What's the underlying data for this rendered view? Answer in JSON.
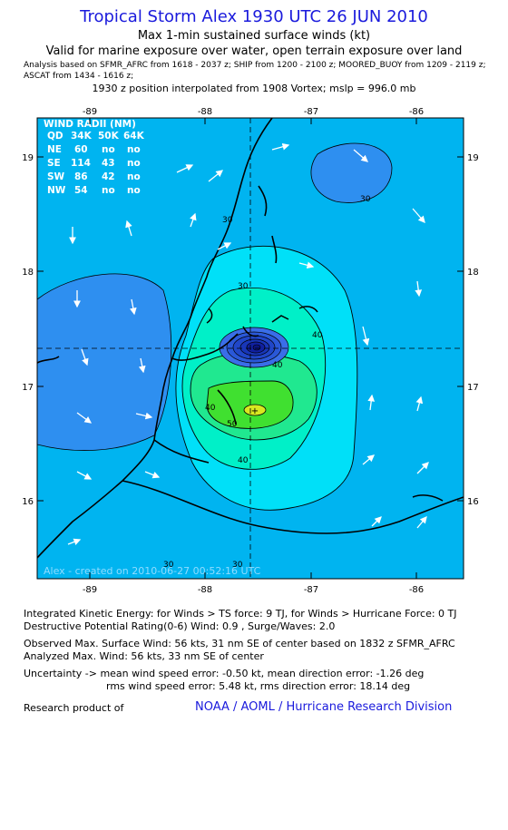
{
  "header": {
    "title": "Tropical Storm Alex 1930 UTC 26 JUN 2010",
    "subtitle_wind": "Max 1-min sustained surface winds (kt)",
    "subtitle_exposure": "Valid for marine exposure over water, open terrain exposure over land",
    "analysis_line1": "Analysis based on  SFMR_AFRC from 1618 - 2037 z;  SHIP from 1200 - 2100 z;  MOORED_BUOY from 1209 - 2119 z;",
    "analysis_line2": "ASCAT from 1434 - 1616 z;",
    "position_line": "1930 z position interpolated from 1908 Vortex; mslp = 996.0 mb"
  },
  "map": {
    "lon_ticks": [
      "-89",
      "-88",
      "-87",
      "-86"
    ],
    "lat_ticks": [
      "19",
      "18",
      "17",
      "16"
    ],
    "created_text": "Alex - created on 2010-06-27 00:52:16 UTC",
    "contour_labels": [
      "30",
      "40",
      "50",
      "40",
      "40",
      "30",
      "40",
      "30",
      "30",
      "30"
    ],
    "colors": {
      "land_line": "#000000",
      "wind_20_30": "#00b4f0",
      "wind_30_40": "#00e0f8",
      "wind_low": "#2e8ff0",
      "wind_40_50": "#00f0c8",
      "wind_50_plus": "#40e030",
      "wind_peak": "#d8e820",
      "core": "#1020a0"
    },
    "wind_radii": {
      "title": "WIND RADII (NM)",
      "header": [
        "QD",
        "34K",
        "50K",
        "64K"
      ],
      "rows": [
        [
          "NE",
          "60",
          "no",
          "no"
        ],
        [
          "SE",
          "114",
          "43",
          "no"
        ],
        [
          "SW",
          "86",
          "42",
          "no"
        ],
        [
          "NW",
          "54",
          "no",
          "no"
        ]
      ]
    }
  },
  "footer": {
    "ike": "Integrated Kinetic Energy:  for Winds > TS force: 9 TJ,  for Winds > Hurricane Force: 0 TJ",
    "dpr": "Destructive Potential Rating(0-6)  Wind: 0.9 , Surge/Waves: 2.0",
    "observed": "Observed Max. Surface Wind: 56 kts, 31 nm SE of center based on 1832 z SFMR_AFRC",
    "analyzed": "Analyzed Max. Wind: 56 kts, 33 nm SE of center",
    "uncertainty1": "Uncertainty -> mean wind speed error:  -0.50 kt,   mean direction error:  -1.26 deg",
    "uncertainty2": "rms wind speed error: 5.48 kt,   rms direction error: 18.14 deg",
    "research": "Research product of",
    "org": "NOAA / AOML / Hurricane Research Division"
  }
}
